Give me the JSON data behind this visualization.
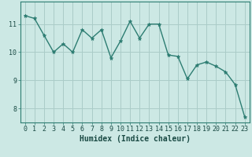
{
  "title": "",
  "xlabel": "Humidex (Indice chaleur)",
  "ylabel": "",
  "background_color": "#cce8e4",
  "grid_color": "#aaccc8",
  "line_color": "#2d7d72",
  "marker_color": "#2d7d72",
  "x": [
    0,
    1,
    2,
    3,
    4,
    5,
    6,
    7,
    8,
    9,
    10,
    11,
    12,
    13,
    14,
    15,
    16,
    17,
    18,
    19,
    20,
    21,
    22,
    23
  ],
  "y": [
    11.3,
    11.2,
    10.6,
    10.0,
    10.3,
    10.0,
    10.8,
    10.5,
    10.8,
    9.8,
    10.4,
    11.1,
    10.5,
    11.0,
    11.0,
    9.9,
    9.85,
    9.05,
    9.55,
    9.65,
    9.5,
    9.3,
    8.85,
    7.7
  ],
  "ylim": [
    7.5,
    11.8
  ],
  "yticks": [
    8,
    9,
    10,
    11
  ],
  "xticks": [
    0,
    1,
    2,
    3,
    4,
    5,
    6,
    7,
    8,
    9,
    10,
    11,
    12,
    13,
    14,
    15,
    16,
    17,
    18,
    19,
    20,
    21,
    22,
    23
  ],
  "title_fontsize": 6,
  "label_fontsize": 7,
  "tick_fontsize": 6
}
